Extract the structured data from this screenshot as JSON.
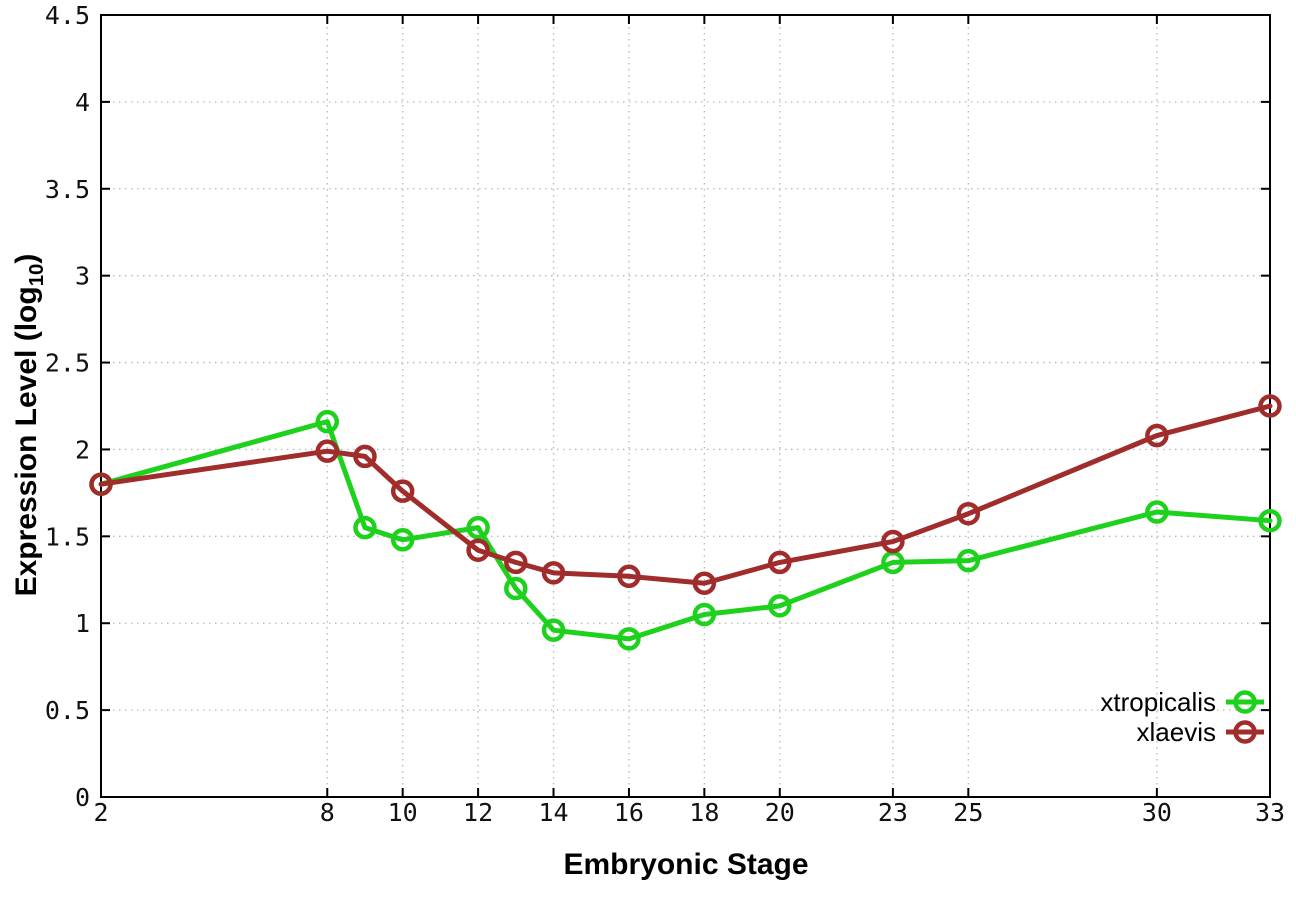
{
  "chart_data": {
    "type": "line",
    "title": "",
    "xlabel": "Embryonic Stage",
    "ylabel": "Expression Level (log10)",
    "ylabel_parts": {
      "pre": "Expression Level (log",
      "sub": "10",
      "post": ")"
    },
    "x": [
      2,
      8,
      9,
      10,
      12,
      13,
      14,
      16,
      18,
      20,
      23,
      25,
      30,
      33
    ],
    "series": [
      {
        "name": "xtropicalis",
        "color": "#1dd11d",
        "values": [
          1.8,
          2.16,
          1.55,
          1.48,
          1.55,
          1.2,
          0.96,
          0.91,
          1.05,
          1.1,
          1.35,
          1.36,
          1.64,
          1.59
        ]
      },
      {
        "name": "xlaevis",
        "color": "#a02c2c",
        "values": [
          1.8,
          1.99,
          1.96,
          1.76,
          1.42,
          1.35,
          1.29,
          1.27,
          1.23,
          1.35,
          1.47,
          1.63,
          2.08,
          2.25
        ]
      }
    ],
    "xlim": [
      2,
      33
    ],
    "ylim": [
      0,
      4.5
    ],
    "xtick_values": [
      2,
      8,
      10,
      12,
      14,
      16,
      18,
      20,
      23,
      25,
      30,
      33
    ],
    "xtick_labels": [
      "2",
      "8",
      "10",
      "12",
      "14",
      "16",
      "18",
      "20",
      "23",
      "25",
      "30",
      "33"
    ],
    "ytick_values": [
      0,
      0.5,
      1,
      1.5,
      2,
      2.5,
      3,
      3.5,
      4,
      4.5
    ],
    "ytick_labels": [
      "0",
      "0.5",
      "1",
      "1.5",
      "2",
      "2.5",
      "3",
      "3.5",
      "4",
      "4.5"
    ],
    "grid": true,
    "grid_style": "dotted",
    "grid_color": "#b8b8b8",
    "axis_color": "#000000",
    "tick_label_color": "#111111",
    "background": "#ffffff",
    "marker": "open-circle",
    "legend_position": "bottom-right",
    "legend": [
      "xtropicalis",
      "xlaevis"
    ]
  }
}
